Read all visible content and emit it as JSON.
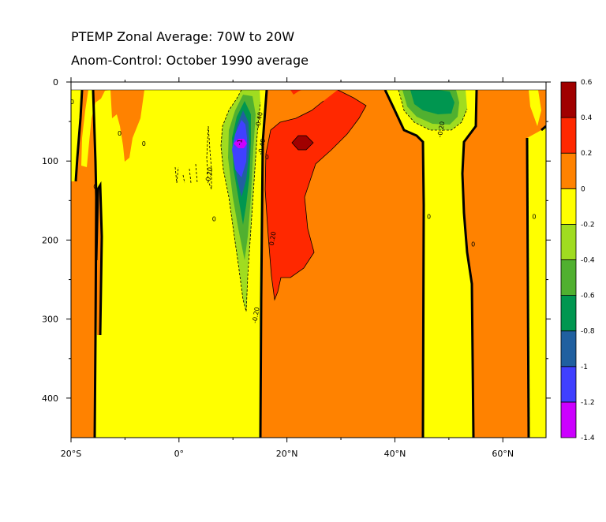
{
  "chart_data": {
    "type": "contour",
    "title": "PTEMP Zonal Average: 70W to 20W",
    "subtitle": "Anom-Control: October 1990 average",
    "x_ticks": [
      {
        "value": -20,
        "label": "20°S"
      },
      {
        "value": 0,
        "label": "0°"
      },
      {
        "value": 20,
        "label": "20°N"
      },
      {
        "value": 40,
        "label": "40°N"
      },
      {
        "value": 60,
        "label": "60°N"
      }
    ],
    "y_ticks": [
      {
        "value": 0,
        "label": "0"
      },
      {
        "value": 100,
        "label": "100"
      },
      {
        "value": 200,
        "label": "200"
      },
      {
        "value": 300,
        "label": "300"
      },
      {
        "value": 400,
        "label": "400"
      }
    ],
    "xlim": [
      -20,
      68
    ],
    "ylim": [
      0,
      450
    ],
    "y_reversed": true,
    "data_top": 10,
    "colorbar": {
      "levels": [
        -1.4,
        -1.2,
        -1,
        -0.8,
        -0.6,
        -0.4,
        -0.2,
        0,
        0.2,
        0.4,
        0.6
      ],
      "labels": [
        "-1.4",
        "-1.2",
        "-1",
        "-0.8",
        "-0.6",
        "-0.4",
        "-0.2",
        "0",
        "0.2",
        "0.4",
        "0.6"
      ],
      "colors": [
        "#cc00ff",
        "#4040ff",
        "#2060a0",
        "#009650",
        "#50b030",
        "#a0dc20",
        "#ffff00",
        "#ff8200",
        "#ff2800",
        "#a00000"
      ]
    },
    "contour_labels": [
      {
        "x": -19.8,
        "y": 25,
        "text": "0"
      },
      {
        "x": -15.5,
        "y": 132,
        "text": "0"
      },
      {
        "x": -11,
        "y": 65,
        "text": "0"
      },
      {
        "x": -6.5,
        "y": 78,
        "text": "0"
      },
      {
        "x": 5.5,
        "y": 118,
        "text": "-0.20"
      },
      {
        "x": 6.5,
        "y": 173,
        "text": "0"
      },
      {
        "x": 11.2,
        "y": 76,
        "text": "-1"
      },
      {
        "x": 14.8,
        "y": 48,
        "text": "-0.40"
      },
      {
        "x": 15.3,
        "y": 82,
        "text": "-0.40"
      },
      {
        "x": 16.3,
        "y": 95,
        "text": "0"
      },
      {
        "x": 17.3,
        "y": 198,
        "text": "0.20"
      },
      {
        "x": 14.2,
        "y": 295,
        "text": "-0.20"
      },
      {
        "x": 48.5,
        "y": 60,
        "text": "-0.20"
      },
      {
        "x": 46.3,
        "y": 170,
        "text": "0"
      },
      {
        "x": 54.5,
        "y": 205,
        "text": "0"
      },
      {
        "x": 65.8,
        "y": 170,
        "text": "0"
      }
    ]
  }
}
